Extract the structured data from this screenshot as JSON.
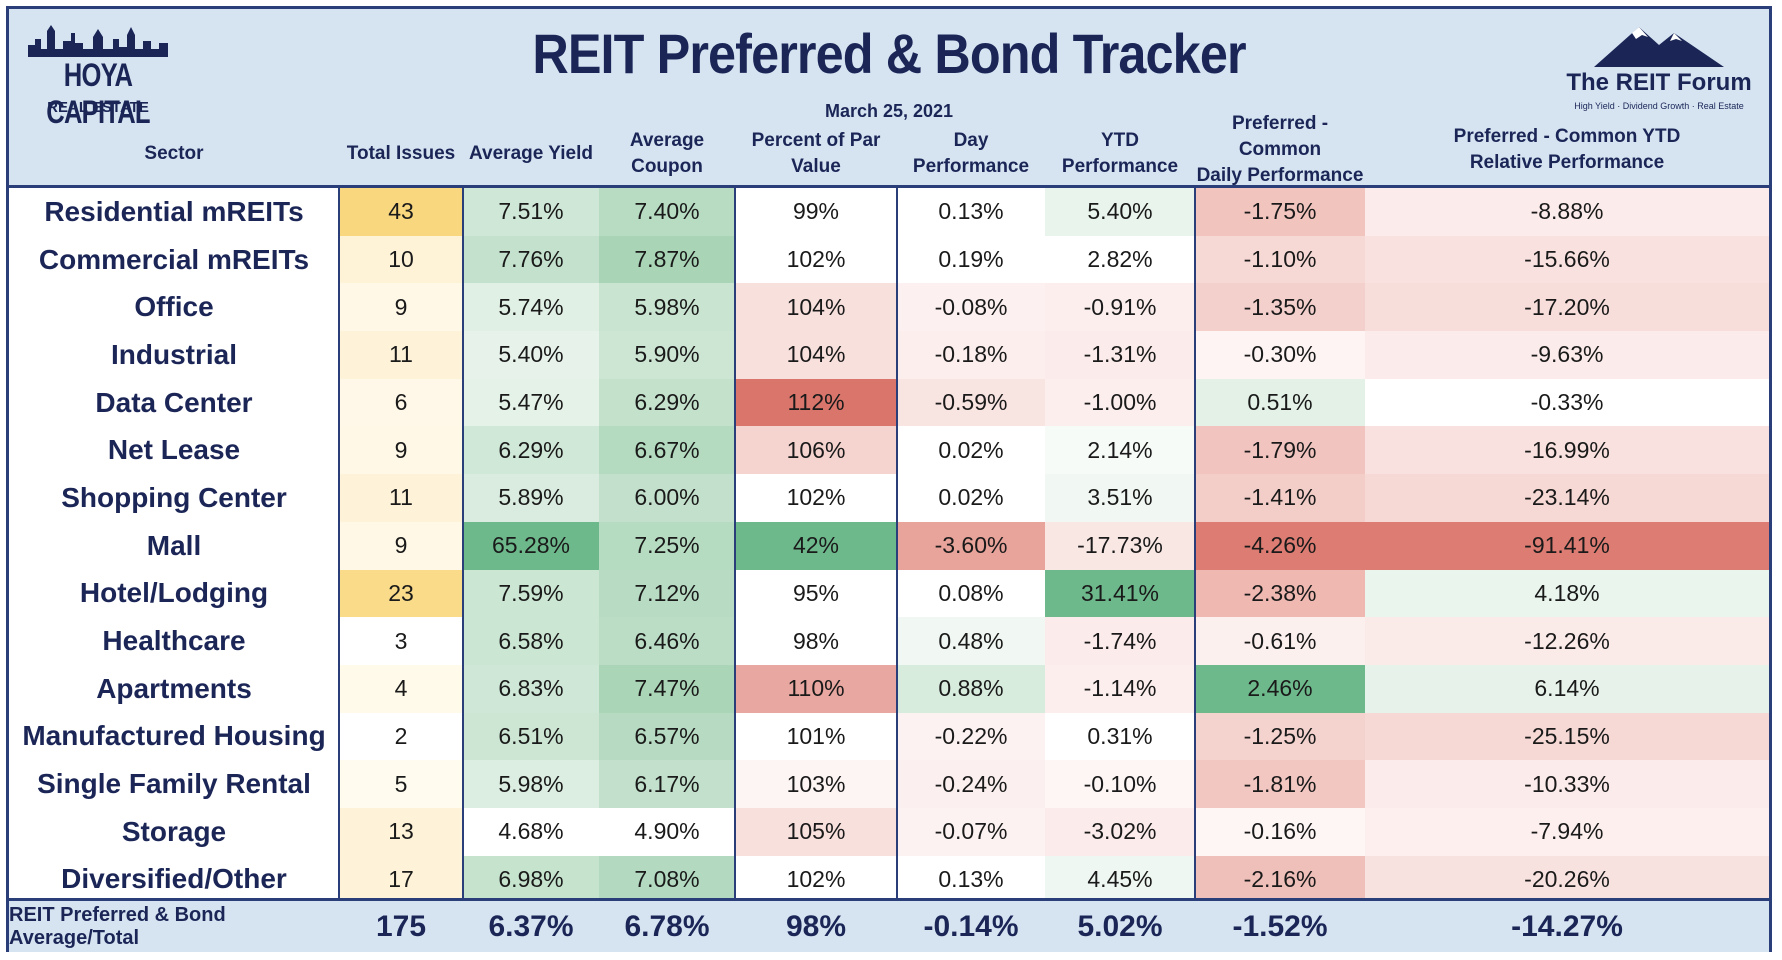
{
  "header": {
    "title": "REIT Preferred & Bond Tracker",
    "date": "March 25, 2021",
    "logo_left": {
      "name": "HOYA CAPITAL",
      "sub": "REAL ESTATE"
    },
    "logo_right": {
      "name": "The REIT Forum",
      "sub": "High Yield · Dividend Growth · Real Estate"
    }
  },
  "chart_data": {
    "type": "table",
    "title": "REIT Preferred & Bond Tracker",
    "columns": [
      "Sector",
      "Total Issues",
      "Average Yield",
      "Average Coupon",
      "Percent of Par Value",
      "Day Performance",
      "YTD Performance",
      "Preferred - Common Daily Performance",
      "Preferred - Common YTD Relative Performance"
    ],
    "rows": [
      [
        "Residential mREITs",
        "43",
        "7.51%",
        "7.40%",
        "99%",
        "0.13%",
        "5.40%",
        "-1.75%",
        "-8.88%"
      ],
      [
        "Commercial mREITs",
        "10",
        "7.76%",
        "7.87%",
        "102%",
        "0.19%",
        "2.82%",
        "-1.10%",
        "-15.66%"
      ],
      [
        "Office",
        "9",
        "5.74%",
        "5.98%",
        "104%",
        "-0.08%",
        "-0.91%",
        "-1.35%",
        "-17.20%"
      ],
      [
        "Industrial",
        "11",
        "5.40%",
        "5.90%",
        "104%",
        "-0.18%",
        "-1.31%",
        "-0.30%",
        "-9.63%"
      ],
      [
        "Data Center",
        "6",
        "5.47%",
        "6.29%",
        "112%",
        "-0.59%",
        "-1.00%",
        "0.51%",
        "-0.33%"
      ],
      [
        "Net Lease",
        "9",
        "6.29%",
        "6.67%",
        "106%",
        "0.02%",
        "2.14%",
        "-1.79%",
        "-16.99%"
      ],
      [
        "Shopping Center",
        "11",
        "5.89%",
        "6.00%",
        "102%",
        "0.02%",
        "3.51%",
        "-1.41%",
        "-23.14%"
      ],
      [
        "Mall",
        "9",
        "65.28%",
        "7.25%",
        "42%",
        "-3.60%",
        "-17.73%",
        "-4.26%",
        "-91.41%"
      ],
      [
        "Hotel/Lodging",
        "23",
        "7.59%",
        "7.12%",
        "95%",
        "0.08%",
        "31.41%",
        "-2.38%",
        "4.18%"
      ],
      [
        "Healthcare",
        "3",
        "6.58%",
        "6.46%",
        "98%",
        "0.48%",
        "-1.74%",
        "-0.61%",
        "-12.26%"
      ],
      [
        "Apartments",
        "4",
        "6.83%",
        "7.47%",
        "110%",
        "0.88%",
        "-1.14%",
        "2.46%",
        "6.14%"
      ],
      [
        "Manufactured Housing",
        "2",
        "6.51%",
        "6.57%",
        "101%",
        "-0.22%",
        "0.31%",
        "-1.25%",
        "-25.15%"
      ],
      [
        "Single Family Rental",
        "5",
        "5.98%",
        "6.17%",
        "103%",
        "-0.24%",
        "-0.10%",
        "-1.81%",
        "-10.33%"
      ],
      [
        "Storage",
        "13",
        "4.68%",
        "4.90%",
        "105%",
        "-0.07%",
        "-3.02%",
        "-0.16%",
        "-7.94%"
      ],
      [
        "Diversified/Other",
        "17",
        "6.98%",
        "7.08%",
        "102%",
        "0.13%",
        "4.45%",
        "-2.16%",
        "-20.26%"
      ]
    ],
    "total_row": [
      "REIT Preferred & Bond Average/Total",
      "175",
      "6.37%",
      "6.78%",
      "98%",
      "-0.14%",
      "5.02%",
      "-1.52%",
      "-14.27%"
    ]
  },
  "colors": {
    "header_bg": "#d6e4f2",
    "border": "#2a3f7a",
    "text_dark": "#1b2657",
    "green_strong": "#6db98c",
    "green_light": "#e7f3ea",
    "red_strong": "#dc7c72",
    "red_light": "#fbecea",
    "yellow_strong": "#f7d67a",
    "yellow_light": "#fef6dc"
  },
  "cell_colors": [
    [
      "#f8d77f",
      "#cfe7d6",
      "#b7dcc2",
      "#ffffff",
      "#ffffff",
      "#e9f4ec",
      "#f2c4be",
      "#fbebea"
    ],
    [
      "#fef3d7",
      "#c3e1cc",
      "#a9d5b6",
      "#ffffff",
      "#ffffff",
      "#ffffff",
      "#f6d9d5",
      "#f8e1de"
    ],
    [
      "#fff8e6",
      "#e1f0e5",
      "#c9e4d1",
      "#f8e0dd",
      "#fcf1f0",
      "#fbeeed",
      "#f4d0cc",
      "#f7dedb"
    ],
    [
      "#fef3d8",
      "#e7f3ea",
      "#cde6d4",
      "#f8e0dd",
      "#fbeeec",
      "#fbeceb",
      "#fdf4f3",
      "#fbebea"
    ],
    [
      "#fff8e9",
      "#e5f2e8",
      "#c4e1cc",
      "#d9756b",
      "#f8e4e1",
      "#fbeeed",
      "#e3f1e7",
      "#ffffff"
    ],
    [
      "#fff8e6",
      "#d0e8d7",
      "#b4dbc0",
      "#f5d3cf",
      "#ffffff",
      "#f7fbf8",
      "#f1c4bf",
      "#f8e1de"
    ],
    [
      "#fef3d8",
      "#d9ecdf",
      "#c2e0cb",
      "#ffffff",
      "#ffffff",
      "#f1f8f3",
      "#f3cdc8",
      "#f6d8d4"
    ],
    [
      "#fff8e6",
      "#6db98c",
      "#b5dbc1",
      "#6db98c",
      "#e8a39b",
      "#f9e7e4",
      "#dc7c72",
      "#dc7c72"
    ],
    [
      "#f9db8a",
      "#cbe6d3",
      "#b8dcc3",
      "#ffffff",
      "#ffffff",
      "#6db98c",
      "#efb9b2",
      "#eaf5ee"
    ],
    [
      "#ffffff",
      "#cce6d4",
      "#bbddc5",
      "#ffffff",
      "#f1f8f3",
      "#fbeceb",
      "#fcf0ef",
      "#faeae8"
    ],
    [
      "#fffaea",
      "#cfe7d6",
      "#aad5b6",
      "#e8a7a0",
      "#d8ecde",
      "#fbeeed",
      "#6db98c",
      "#e7f3ea"
    ],
    [
      "#ffffff",
      "#cde6d4",
      "#b7dbc2",
      "#ffffff",
      "#fbf2f1",
      "#ffffff",
      "#f4d3cf",
      "#f6d9d5"
    ],
    [
      "#fffbef",
      "#dcede1",
      "#c2e0cb",
      "#fdf5f4",
      "#fbf0ef",
      "#fdf6f5",
      "#f2c7c2",
      "#fbebea"
    ],
    [
      "#fef3d8",
      "#ffffff",
      "#ffffff",
      "#f8e0dd",
      "#fcf2f1",
      "#fbeceb",
      "#fdf6f5",
      "#fcefed"
    ],
    [
      "#fef3d8",
      "#c6e3ce",
      "#b3dac0",
      "#ffffff",
      "#ffffff",
      "#eff7f2",
      "#efbfb9",
      "#f8e2df"
    ]
  ]
}
